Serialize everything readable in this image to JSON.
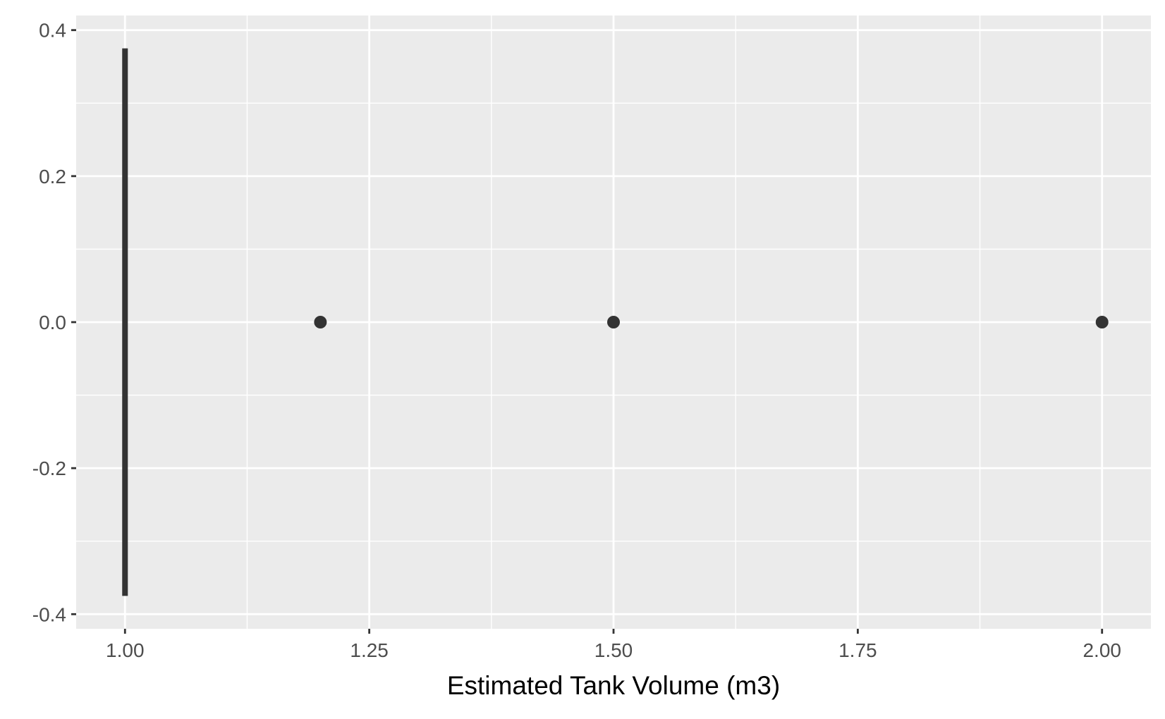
{
  "chart_data": {
    "type": "scatter",
    "title": "",
    "xlabel": "Estimated Tank Volume (m3)",
    "ylabel": "",
    "xlim": [
      0.95,
      2.05
    ],
    "ylim": [
      -0.42,
      0.42
    ],
    "x_ticks": [
      1.0,
      1.25,
      1.5,
      1.75,
      2.0
    ],
    "x_tick_labels": [
      "1.00",
      "1.25",
      "1.50",
      "1.75",
      "2.00"
    ],
    "y_ticks": [
      -0.4,
      -0.2,
      0.0,
      0.2,
      0.4
    ],
    "y_tick_labels": [
      "-0.4",
      "-0.2",
      "0.0",
      "0.2",
      "0.4"
    ],
    "x_minor": [
      1.125,
      1.375,
      1.625,
      1.875
    ],
    "y_minor": [
      -0.3,
      -0.1,
      0.1,
      0.3
    ],
    "grid": true,
    "points": [
      {
        "x": 1.2,
        "y": 0.0
      },
      {
        "x": 1.5,
        "y": 0.0
      },
      {
        "x": 2.0,
        "y": 0.0
      }
    ],
    "segments": [
      {
        "x": 1.0,
        "y_start": -0.375,
        "y_end": 0.375
      }
    ],
    "colors": {
      "panel_background": "#ebebeb",
      "grid": "#ffffff",
      "marks": "#333333",
      "tick_marks": "#333333"
    }
  }
}
